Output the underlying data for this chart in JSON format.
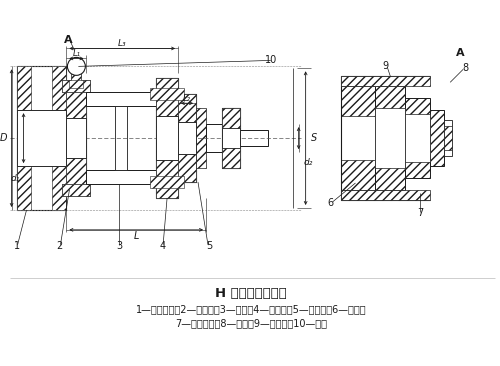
{
  "title": "H 型平行轴联轴器",
  "caption_line1": "1—半联轴器；2—主动盘；3—连杆；4—中间盘；5—被动盘；6—销轴；",
  "caption_line2": "7—滑动轴承；8—挡环；9—隔离环；10—销轴",
  "bg_color": "#ffffff",
  "lc": "#1a1a1a"
}
